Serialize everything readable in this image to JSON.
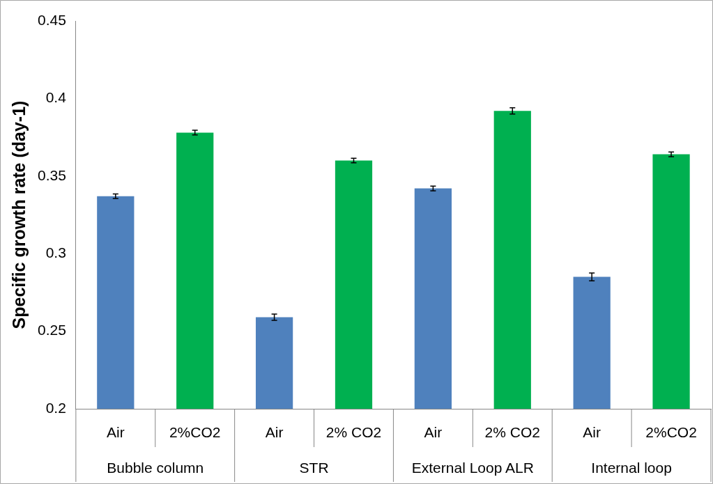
{
  "chart_data": {
    "type": "bar",
    "ylabel": "Specific growth rate (day-1)",
    "categories": [
      "Air",
      "2%CO2",
      "Air",
      "2% CO2",
      "Air",
      "2% CO2",
      "Air",
      "2%CO2"
    ],
    "values": [
      0.337,
      0.378,
      0.259,
      0.36,
      0.342,
      0.392,
      0.285,
      0.364
    ],
    "errors": [
      0.0015,
      0.0015,
      0.002,
      0.0015,
      0.0015,
      0.002,
      0.0025,
      0.0015
    ],
    "colors": [
      "#4f81bd",
      "#00b050",
      "#4f81bd",
      "#00b050",
      "#4f81bd",
      "#00b050",
      "#4f81bd",
      "#00b050"
    ],
    "ylim": [
      0.2,
      0.45
    ],
    "yticks": [
      0.2,
      0.25,
      0.3,
      0.35,
      0.4,
      0.45
    ],
    "grid": false,
    "legend": false,
    "annotations": [
      "Bubble column",
      "STR",
      "External Loop ALR",
      "Internal loop"
    ]
  }
}
